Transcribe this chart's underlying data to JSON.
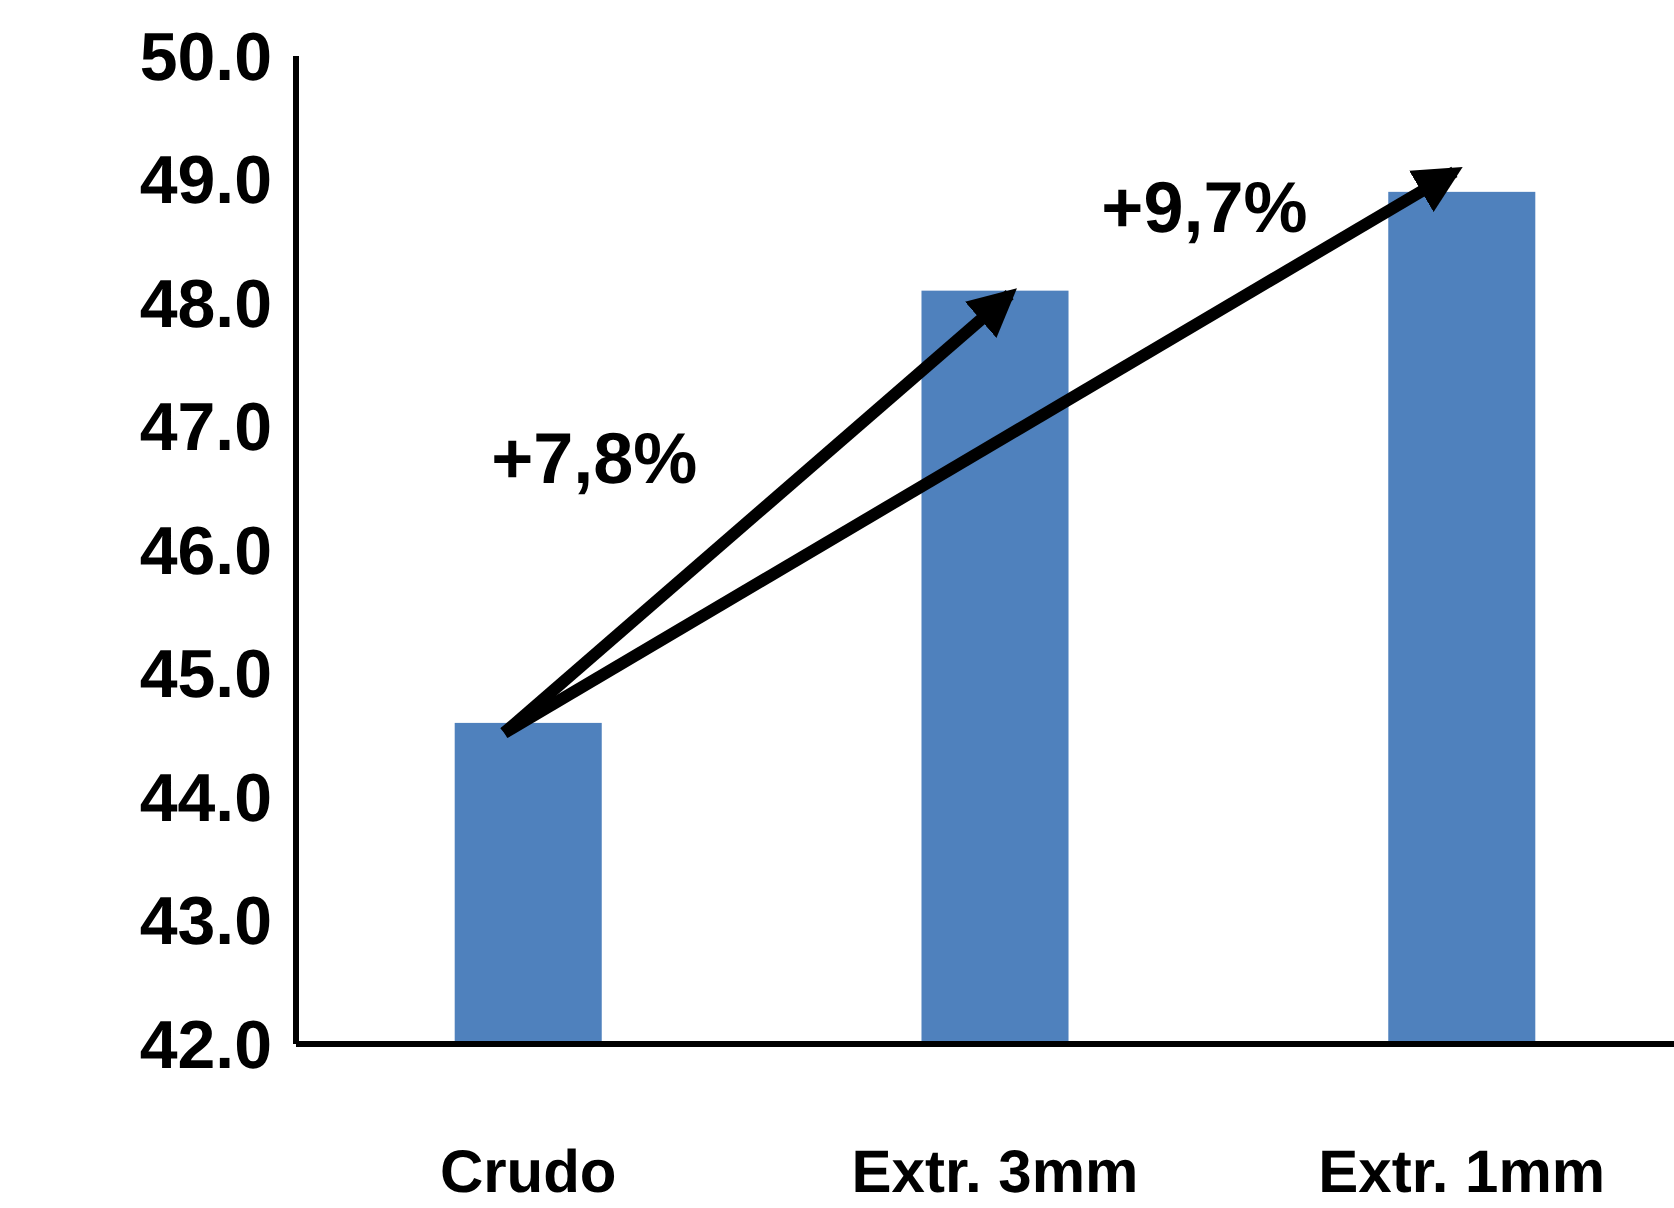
{
  "chart_data": {
    "type": "bar",
    "categories": [
      "Crudo",
      "Extr. 3mm",
      "Extr. 1mm"
    ],
    "values": [
      44.6,
      48.1,
      48.9
    ],
    "color": "#4f81bd",
    "ylim": [
      42,
      50
    ],
    "yticks": [
      {
        "value": 42,
        "label": "42.0"
      },
      {
        "value": 43,
        "label": "43.0"
      },
      {
        "value": 44,
        "label": "44.0"
      },
      {
        "value": 45,
        "label": "45.0"
      },
      {
        "value": 46,
        "label": "46.0"
      },
      {
        "value": 47,
        "label": "47.0"
      },
      {
        "value": 48,
        "label": "48.0"
      },
      {
        "value": 49,
        "label": "49.0"
      },
      {
        "value": 50,
        "label": "50.0"
      }
    ],
    "grid": false,
    "annotations": [
      "+7,8%",
      "+9,7%"
    ]
  }
}
